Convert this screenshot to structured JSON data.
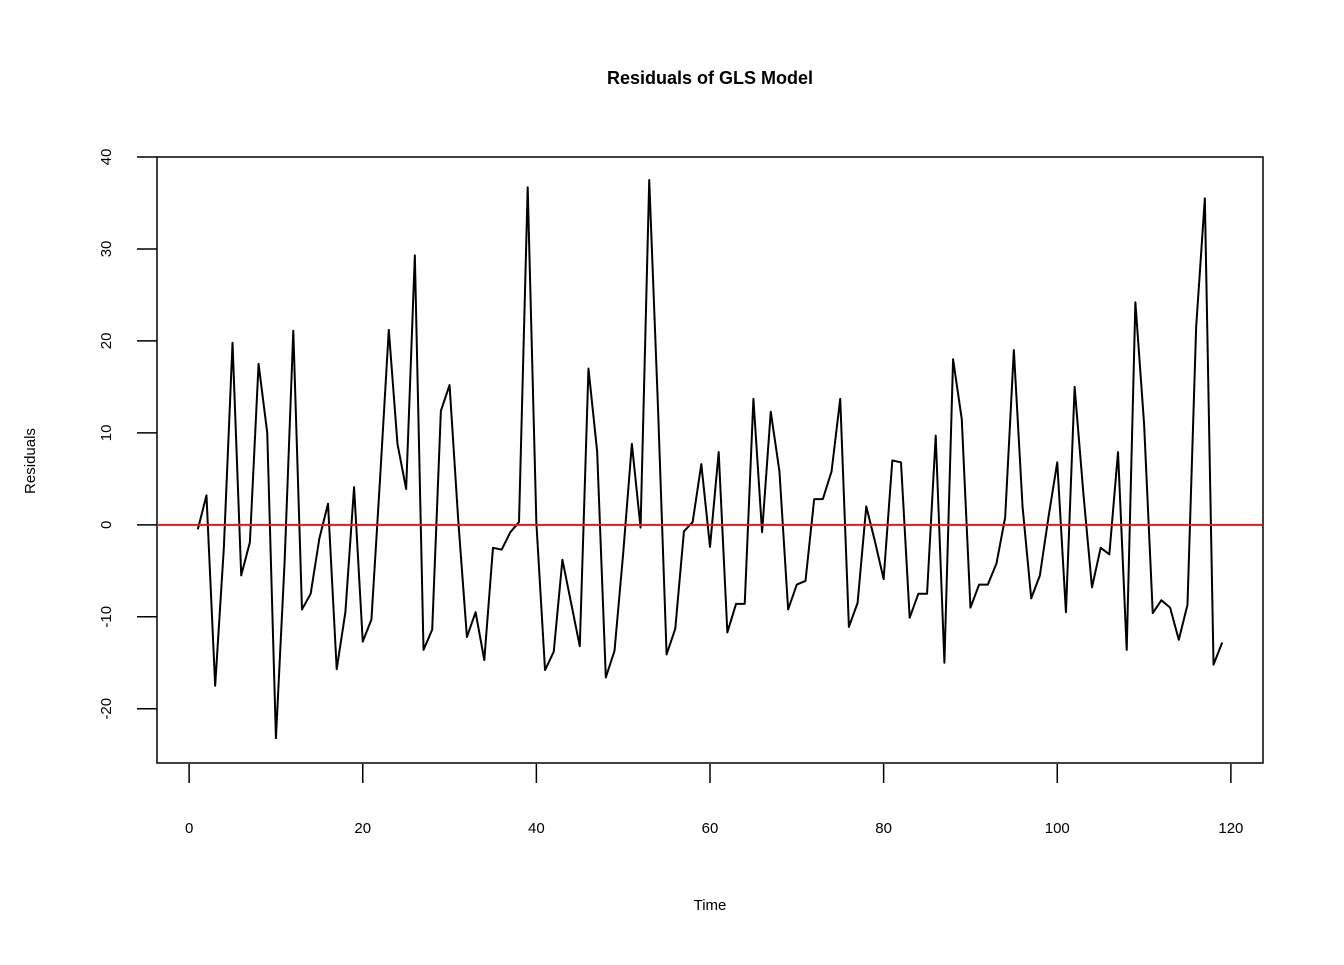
{
  "chart_data": {
    "type": "line",
    "title": "Residuals of GLS Model",
    "xlabel": "Time",
    "ylabel": "Residuals",
    "xlim": [
      -3.7,
      123.7
    ],
    "ylim": [
      -25.9,
      40.0
    ],
    "xticks": [
      0,
      20,
      40,
      60,
      80,
      100,
      120
    ],
    "yticks": [
      -20,
      -10,
      0,
      10,
      20,
      30,
      40
    ],
    "xtick_labels": [
      "0",
      "20",
      "40",
      "60",
      "80",
      "100",
      "120"
    ],
    "ytick_labels": [
      "-20",
      "-10",
      "0",
      "10",
      "20",
      "30",
      "40"
    ],
    "grid": false,
    "legend": "none",
    "series": [
      {
        "color": "#000000",
        "x": [
          1,
          2,
          3,
          4,
          5,
          6,
          7,
          8,
          9,
          10,
          11,
          12,
          13,
          14,
          15,
          16,
          17,
          18,
          19,
          20,
          21,
          22,
          23,
          24,
          25,
          26,
          27,
          28,
          29,
          30,
          31,
          32,
          33,
          34,
          35,
          36,
          37,
          38,
          39,
          40,
          41,
          42,
          43,
          44,
          45,
          46,
          47,
          48,
          49,
          50,
          51,
          52,
          53,
          54,
          55,
          56,
          57,
          58,
          59,
          60,
          61,
          62,
          63,
          64,
          65,
          66,
          67,
          68,
          69,
          70,
          71,
          72,
          73,
          74,
          75,
          76,
          77,
          78,
          79,
          80,
          81,
          82,
          83,
          84,
          85,
          86,
          87,
          88,
          89,
          90,
          91,
          92,
          93,
          94,
          95,
          96,
          97,
          98,
          99,
          100,
          101,
          102,
          103,
          104,
          105,
          106,
          107,
          108,
          109,
          110,
          111,
          112,
          113,
          114,
          115,
          116,
          117,
          118,
          119
        ],
        "y": [
          -0.5,
          3.2,
          -17.5,
          -2.5,
          19.8,
          -5.5,
          -1.9,
          17.5,
          10.0,
          -23.2,
          -4.0,
          21.1,
          -9.2,
          -7.5,
          -1.5,
          2.3,
          -15.7,
          -9.5,
          4.1,
          -12.7,
          -10.3,
          5.1,
          21.2,
          8.8,
          3.9,
          29.3,
          -13.6,
          -11.4,
          12.4,
          15.2,
          0.5,
          -12.2,
          -9.5,
          -14.7,
          -2.5,
          -2.7,
          -0.8,
          0.3,
          36.7,
          0.2,
          -15.8,
          -13.8,
          -3.8,
          -8.5,
          -13.2,
          17.0,
          8.0,
          -16.6,
          -13.7,
          -3.1,
          8.8,
          -0.3,
          37.5,
          13.0,
          -14.1,
          -11.3,
          -0.7,
          0.3,
          6.6,
          -2.4,
          7.9,
          -11.7,
          -8.6,
          -8.6,
          13.7,
          -0.8,
          12.3,
          5.8,
          -9.2,
          -6.5,
          -6.1,
          2.8,
          2.8,
          5.8,
          13.7,
          -11.1,
          -8.5,
          2.0,
          -1.8,
          -5.9,
          7.0,
          6.8,
          -10.1,
          -7.5,
          -7.5,
          9.7,
          -15.0,
          18.0,
          11.5,
          -9.0,
          -6.5,
          -6.5,
          -4.2,
          0.8,
          19.0,
          2.0,
          -8.0,
          -5.5,
          0.9,
          6.8,
          -9.5,
          15.0,
          3.5,
          -6.8,
          -2.5,
          -3.2,
          7.9,
          -13.6,
          24.2,
          11.0,
          -9.6,
          -8.2,
          -9.0,
          -12.5,
          -8.7,
          21.5,
          35.5,
          -15.2,
          -12.8
        ]
      }
    ],
    "reference_line": {
      "y": 0,
      "color": "#e31a1c"
    }
  }
}
